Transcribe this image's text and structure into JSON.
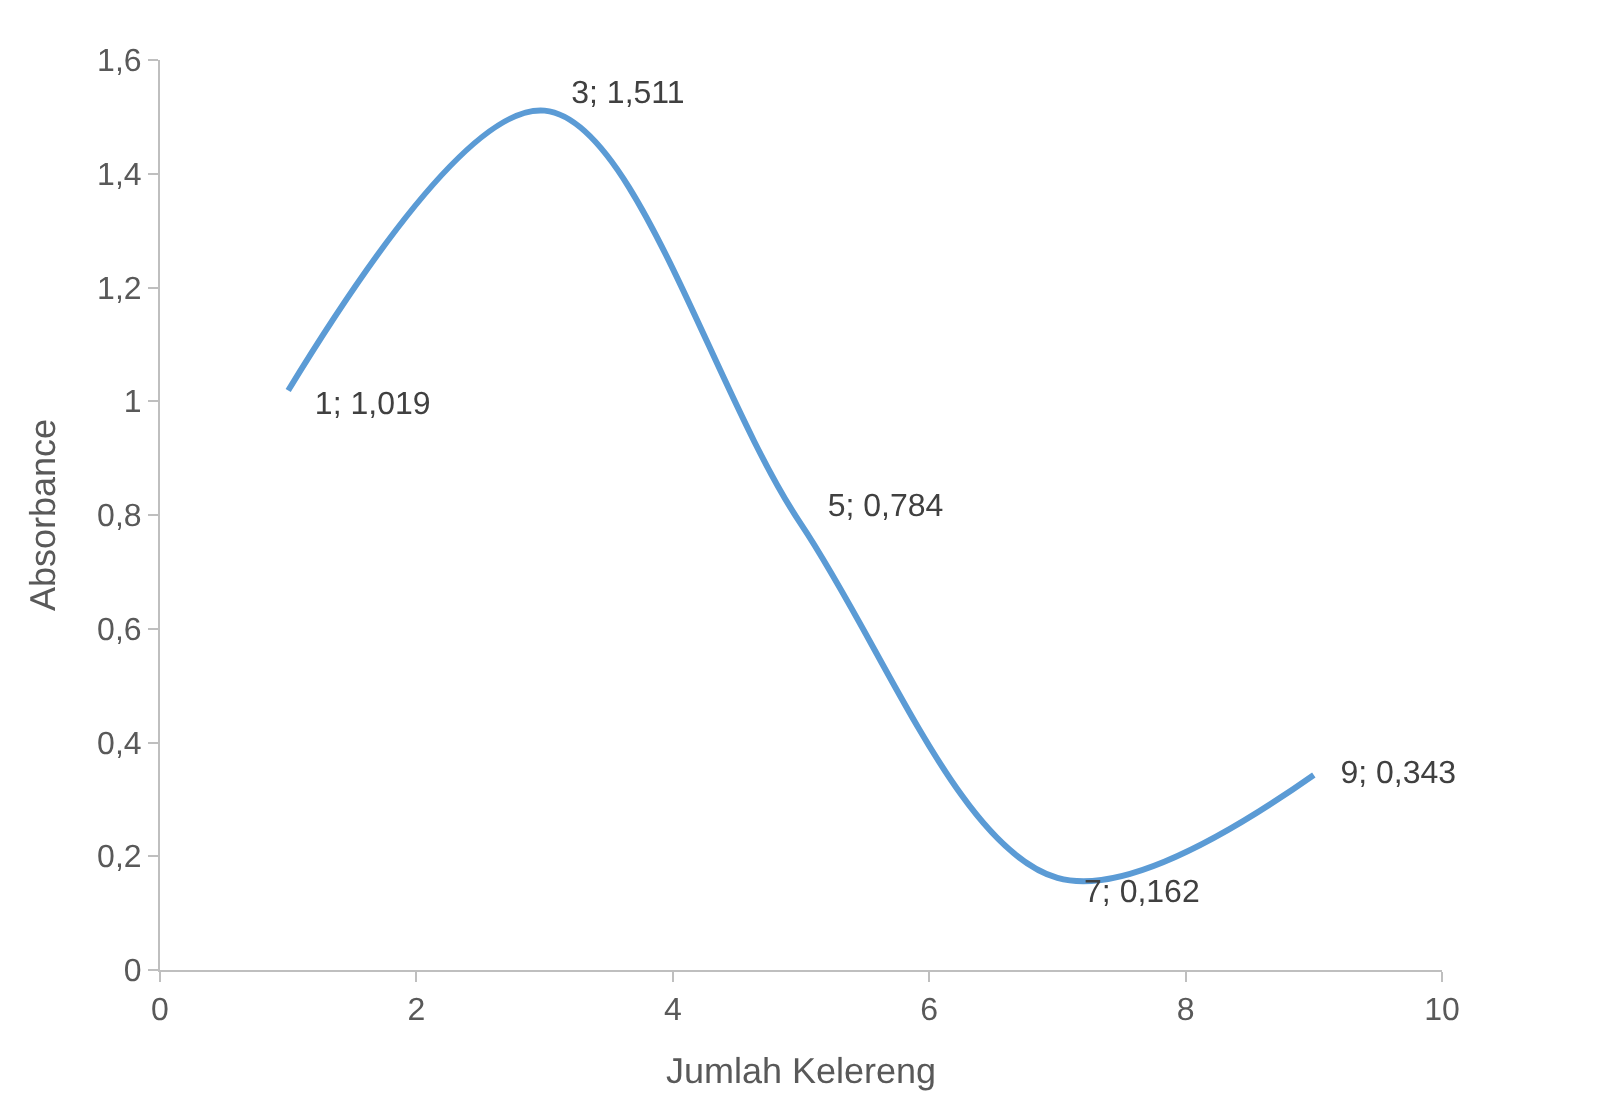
{
  "chart_data": {
    "type": "line",
    "xlabel": "Jumlah Kelereng",
    "ylabel": "Absorbance",
    "x": [
      1,
      3,
      5,
      7,
      9
    ],
    "series": [
      {
        "color": "#5b9bd5",
        "values": [
          1.019,
          1.511,
          0.784,
          0.162,
          0.343
        ],
        "value_labels": [
          "1; 1,019",
          "3; 1,511",
          "5; 0,784",
          "7; 0,162",
          "9; 0,343"
        ]
      }
    ],
    "xlim": [
      0,
      10
    ],
    "xticks": [
      0,
      2,
      4,
      6,
      8,
      10
    ],
    "ylim": [
      0,
      1.6
    ],
    "yticks": [
      0,
      {
        "value": 0.2,
        "label": "0,2"
      },
      {
        "value": 0.4,
        "label": "0,4"
      },
      {
        "value": 0.6,
        "label": "0,6"
      },
      {
        "value": 0.8,
        "label": "0,8"
      },
      1,
      {
        "value": 1.2,
        "label": "1,2"
      },
      {
        "value": 1.4,
        "label": "1,4"
      },
      {
        "value": 1.6,
        "label": "1,6"
      }
    ],
    "marker": "none",
    "line_style": "solid"
  }
}
